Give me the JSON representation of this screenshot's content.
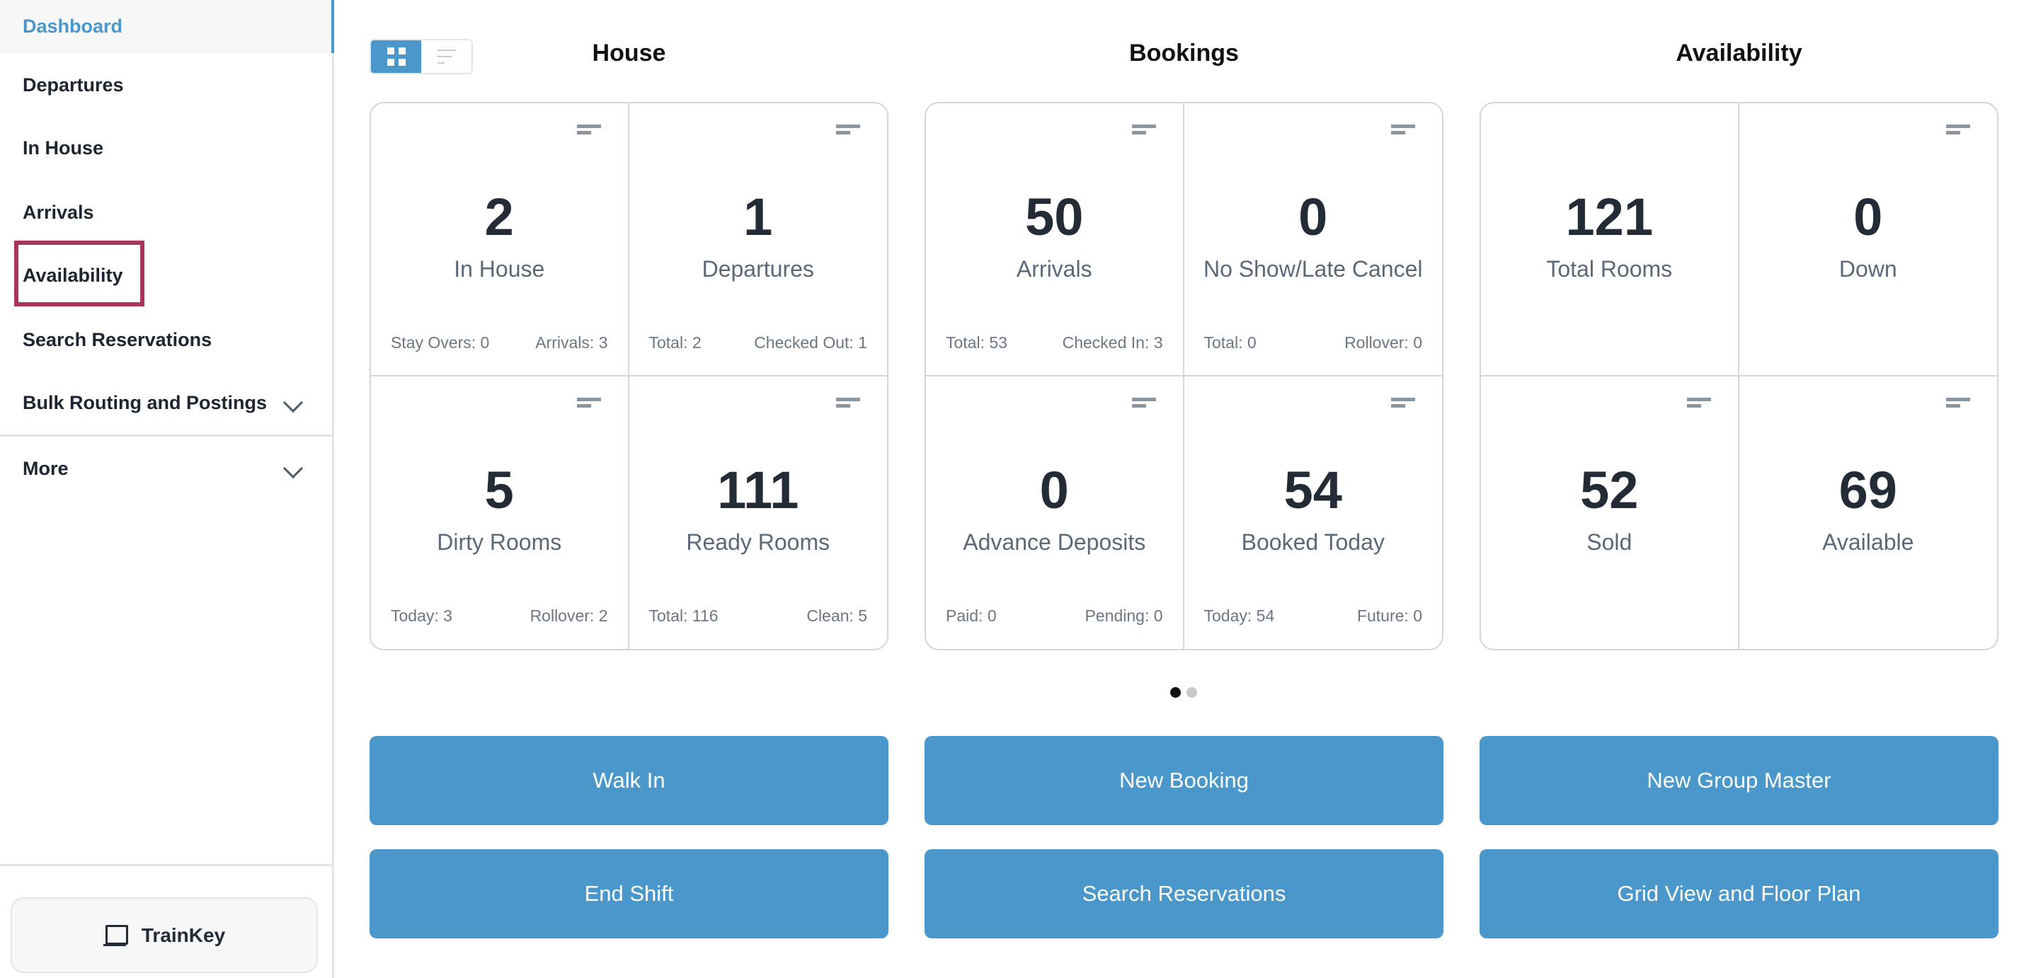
{
  "sidebar": {
    "items": [
      {
        "label": "Dashboard"
      },
      {
        "label": "Departures"
      },
      {
        "label": "In House"
      },
      {
        "label": "Arrivals"
      },
      {
        "label": "Availability"
      },
      {
        "label": "Search Reservations"
      },
      {
        "label": "Bulk Routing and Postings"
      },
      {
        "label": "More"
      }
    ],
    "trainkey_label": "TrainKey"
  },
  "colors": {
    "accent": "#4a98cb",
    "highlight": "#a8355b"
  },
  "view_toggle": {
    "selected": "grid"
  },
  "groups": [
    {
      "title": "House",
      "cells": [
        {
          "value": "2",
          "label": "In House",
          "left": "Stay Overs: 0",
          "right": "Arrivals: 3"
        },
        {
          "value": "1",
          "label": "Departures",
          "left": "Total: 2",
          "right": "Checked Out: 1"
        },
        {
          "value": "5",
          "label": "Dirty Rooms",
          "left": "Today: 3",
          "right": "Rollover: 2"
        },
        {
          "value": "111",
          "label": "Ready Rooms",
          "left": "Total: 116",
          "right": "Clean: 5"
        }
      ]
    },
    {
      "title": "Bookings",
      "cells": [
        {
          "value": "50",
          "label": "Arrivals",
          "left": "Total: 53",
          "right": "Checked In: 3"
        },
        {
          "value": "0",
          "label": "No Show/Late Cancel",
          "left": "Total: 0",
          "right": "Rollover: 0"
        },
        {
          "value": "0",
          "label": "Advance Deposits",
          "left": "Paid: 0",
          "right": "Pending: 0"
        },
        {
          "value": "54",
          "label": "Booked Today",
          "left": "Today: 54",
          "right": "Future: 0"
        }
      ]
    },
    {
      "title": "Availability",
      "cells": [
        {
          "value": "121",
          "label": "Total Rooms"
        },
        {
          "value": "0",
          "label": "Down"
        },
        {
          "value": "52",
          "label": "Sold"
        },
        {
          "value": "69",
          "label": "Available"
        }
      ]
    }
  ],
  "pagination": {
    "current": 1,
    "total": 2
  },
  "actions": [
    "Walk In",
    "New Booking",
    "New Group Master",
    "End Shift",
    "Search Reservations",
    "Grid View and Floor Plan"
  ]
}
